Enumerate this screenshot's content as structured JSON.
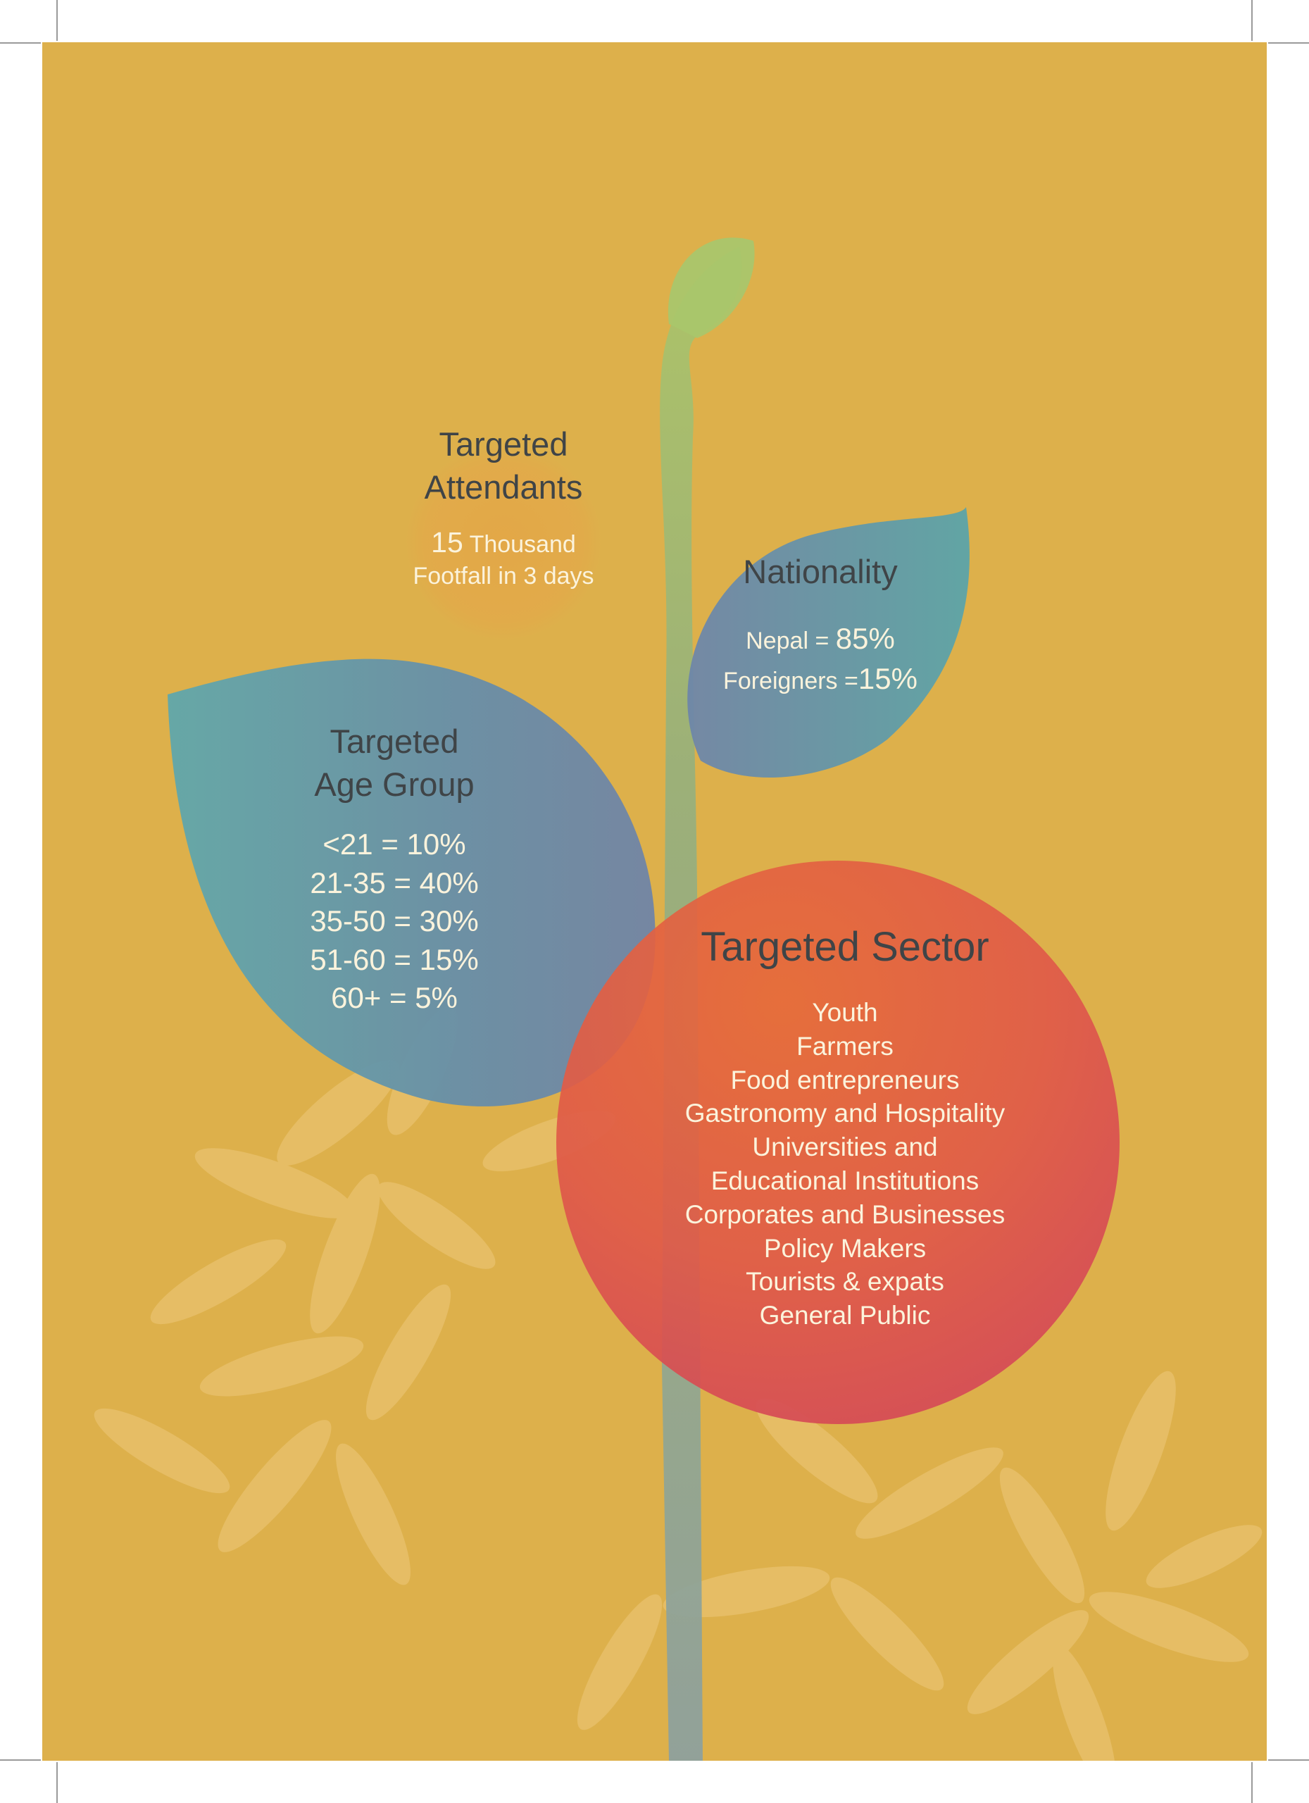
{
  "colors": {
    "page_background": "#ddb04b",
    "stem": "#8eae78",
    "stem_top": "#a7c36c",
    "teal_leaf": "#5f9ea2",
    "blue_leaf": "#6b86a4",
    "attendant_circle": "#e2a648",
    "sector_circle_top": "#e86b39",
    "sector_circle_bottom": "#d64856",
    "title_text": "#3f4447",
    "body_text": "#fbf3dc"
  },
  "attendants": {
    "title_line1": "Targeted",
    "title_line2": "Attendants",
    "count_number": "15",
    "count_unit": " Thousand",
    "footfall": "Footfall in 3 days"
  },
  "nationality": {
    "title": "Nationality",
    "nepal_label": "Nepal = ",
    "nepal_value": "85%",
    "foreigners_label": "Foreigners =",
    "foreigners_value": "15%"
  },
  "age_group": {
    "title_line1": "Targeted",
    "title_line2": "Age Group",
    "rows": [
      "<21 = 10%",
      "21-35 = 40%",
      "35-50 = 30%",
      "51-60 = 15%",
      "60+ = 5%"
    ]
  },
  "sector": {
    "title": "Targeted Sector",
    "items": [
      "Youth",
      "Farmers",
      "Food entrepreneurs",
      "Gastronomy and Hospitality",
      "Universities and",
      "Educational Institutions",
      "Corporates and Businesses",
      "Policy Makers",
      "Tourists & expats",
      "General Public"
    ]
  }
}
